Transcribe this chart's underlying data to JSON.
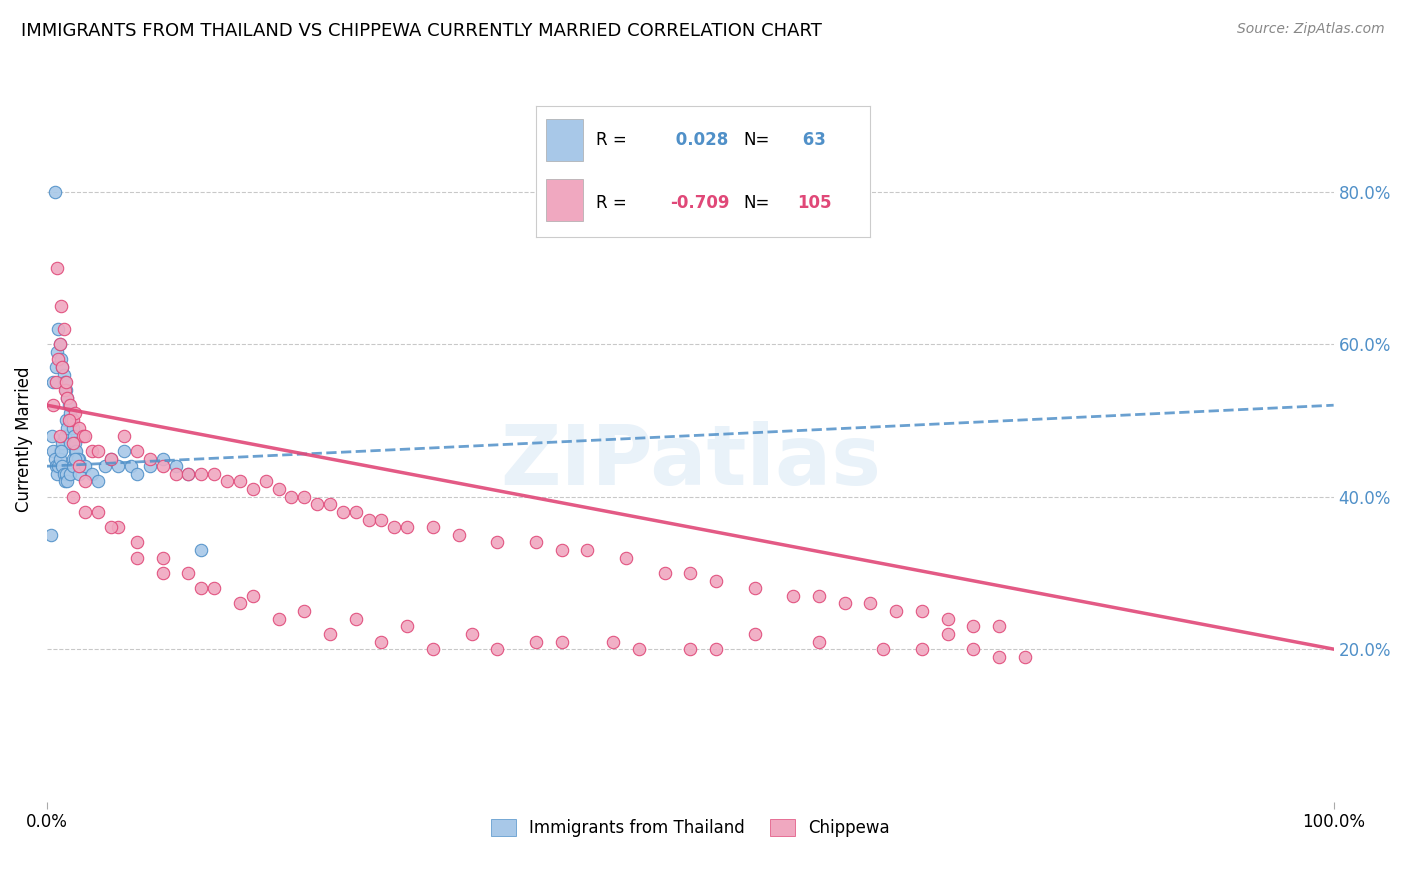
{
  "title": "IMMIGRANTS FROM THAILAND VS CHIPPEWA CURRENTLY MARRIED CORRELATION CHART",
  "source": "Source: ZipAtlas.com",
  "ylabel": "Currently Married",
  "right_yticks": [
    "20.0%",
    "40.0%",
    "60.0%",
    "80.0%"
  ],
  "right_ytick_vals": [
    20.0,
    40.0,
    60.0,
    80.0
  ],
  "legend_labels": [
    "Immigrants from Thailand",
    "Chippewa"
  ],
  "R_thailand": 0.028,
  "N_thailand": 63,
  "R_chippewa": -0.709,
  "N_chippewa": 105,
  "blue_color": "#A8C8E8",
  "pink_color": "#F0A8C0",
  "blue_line_color": "#5090C8",
  "pink_line_color": "#E04878",
  "background_color": "#FFFFFF",
  "title_fontsize": 13,
  "watermark": "ZIPatlas",
  "xlim": [
    0,
    100
  ],
  "ylim": [
    0,
    95
  ],
  "thailand_x": [
    1.0,
    1.2,
    1.4,
    1.5,
    1.6,
    1.8,
    2.0,
    2.2,
    2.4,
    2.5,
    0.5,
    0.7,
    0.8,
    0.9,
    1.0,
    1.1,
    1.2,
    1.3,
    1.4,
    1.5,
    1.6,
    1.7,
    1.8,
    1.9,
    2.0,
    2.1,
    2.2,
    2.3,
    2.4,
    2.5,
    0.4,
    0.5,
    0.6,
    0.7,
    0.8,
    0.9,
    1.0,
    1.1,
    1.2,
    1.3,
    1.4,
    1.5,
    1.6,
    1.8,
    2.0,
    2.2,
    2.5,
    3.0,
    3.5,
    4.0,
    4.5,
    5.0,
    5.5,
    6.0,
    6.5,
    7.0,
    8.0,
    9.0,
    10.0,
    11.0,
    0.3,
    0.6,
    12.0
  ],
  "thailand_y": [
    46,
    47,
    48,
    50,
    49,
    47,
    45,
    46,
    44,
    45,
    55,
    57,
    59,
    62,
    60,
    58,
    57,
    56,
    55,
    54,
    53,
    52,
    51,
    50,
    49,
    48,
    47,
    46,
    45,
    44,
    48,
    46,
    45,
    44,
    43,
    44,
    45,
    46,
    44,
    43,
    42,
    43,
    42,
    43,
    44,
    45,
    43,
    44,
    43,
    42,
    44,
    45,
    44,
    46,
    44,
    43,
    44,
    45,
    44,
    43,
    35,
    80,
    33
  ],
  "chippewa_x": [
    0.5,
    0.7,
    0.9,
    1.0,
    1.2,
    1.4,
    1.5,
    1.6,
    1.8,
    2.0,
    2.2,
    2.5,
    2.8,
    3.0,
    3.5,
    4.0,
    5.0,
    6.0,
    7.0,
    8.0,
    9.0,
    10.0,
    11.0,
    12.0,
    13.0,
    14.0,
    15.0,
    16.0,
    17.0,
    18.0,
    19.0,
    20.0,
    21.0,
    22.0,
    23.0,
    24.0,
    25.0,
    26.0,
    27.0,
    28.0,
    30.0,
    32.0,
    35.0,
    38.0,
    40.0,
    42.0,
    45.0,
    48.0,
    50.0,
    52.0,
    55.0,
    58.0,
    60.0,
    62.0,
    64.0,
    66.0,
    68.0,
    70.0,
    72.0,
    74.0,
    1.1,
    1.3,
    1.7,
    2.0,
    2.5,
    3.0,
    4.0,
    5.5,
    7.0,
    9.0,
    11.0,
    13.0,
    16.0,
    20.0,
    24.0,
    28.0,
    33.0,
    38.0,
    44.0,
    50.0,
    55.0,
    60.0,
    65.0,
    68.0,
    70.0,
    72.0,
    74.0,
    76.0,
    0.8,
    1.0,
    2.0,
    3.0,
    5.0,
    7.0,
    9.0,
    12.0,
    15.0,
    18.0,
    22.0,
    26.0,
    30.0,
    35.0,
    40.0,
    46.0,
    52.0
  ],
  "chippewa_y": [
    52,
    55,
    58,
    60,
    57,
    54,
    55,
    53,
    52,
    50,
    51,
    49,
    48,
    48,
    46,
    46,
    45,
    48,
    46,
    45,
    44,
    43,
    43,
    43,
    43,
    42,
    42,
    41,
    42,
    41,
    40,
    40,
    39,
    39,
    38,
    38,
    37,
    37,
    36,
    36,
    36,
    35,
    34,
    34,
    33,
    33,
    32,
    30,
    30,
    29,
    28,
    27,
    27,
    26,
    26,
    25,
    25,
    24,
    23,
    23,
    65,
    62,
    50,
    47,
    44,
    42,
    38,
    36,
    34,
    32,
    30,
    28,
    27,
    25,
    24,
    23,
    22,
    21,
    21,
    20,
    22,
    21,
    20,
    20,
    22,
    20,
    19,
    19,
    70,
    48,
    40,
    38,
    36,
    32,
    30,
    28,
    26,
    24,
    22,
    21,
    20,
    20,
    21,
    20,
    20
  ]
}
